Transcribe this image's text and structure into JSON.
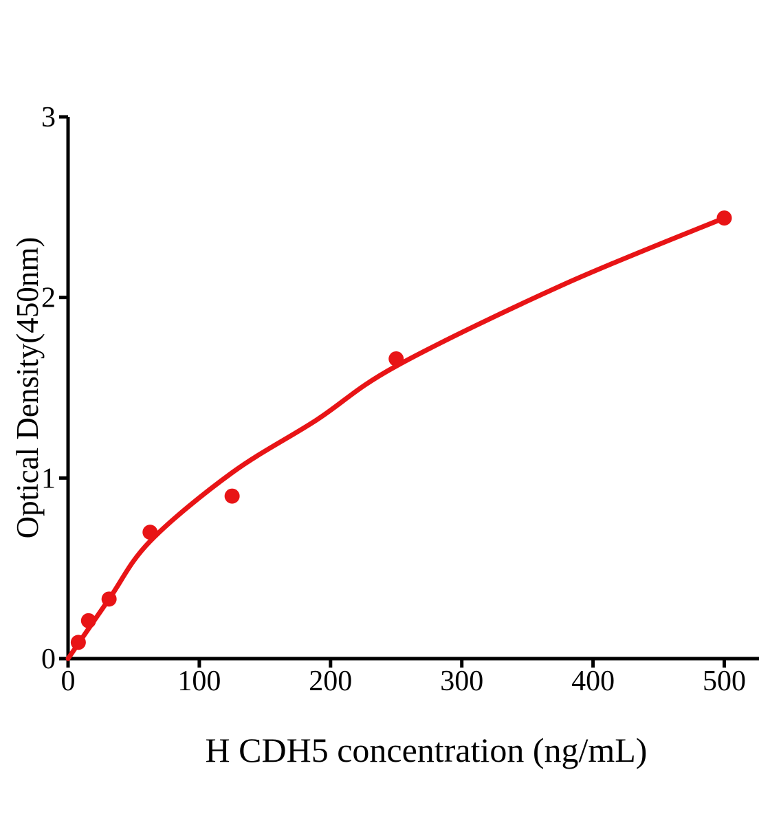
{
  "figure": {
    "background": "#ffffff"
  },
  "chart_data": {
    "type": "scatter",
    "title": "",
    "xlabel": "H CDH5 concentration (ng/mL)",
    "ylabel": "Optical Density(450nm)",
    "xlim": [
      0,
      526
    ],
    "ylim": [
      0,
      3
    ],
    "x_ticks": [
      0,
      100,
      200,
      300,
      400,
      500
    ],
    "y_ticks": [
      0,
      1,
      2,
      3
    ],
    "grid": false,
    "legend": null,
    "axis_color": "#000000",
    "series": [
      {
        "name": "fitted-curve",
        "type": "line",
        "color": "#E81416",
        "stroke_width": 7,
        "points": [
          {
            "x": 0,
            "y": 0
          },
          {
            "x": 31.25,
            "y": 0.33
          },
          {
            "x": 62.5,
            "y": 0.65
          },
          {
            "x": 125,
            "y": 1.03
          },
          {
            "x": 189,
            "y": 1.32
          },
          {
            "x": 250,
            "y": 1.62
          },
          {
            "x": 377,
            "y": 2.07
          },
          {
            "x": 500,
            "y": 2.44
          }
        ]
      },
      {
        "name": "standard-points",
        "type": "scatter",
        "color": "#E81416",
        "marker_radius": 11,
        "points": [
          {
            "x": 7.8,
            "y": 0.09
          },
          {
            "x": 15.6,
            "y": 0.21
          },
          {
            "x": 31.25,
            "y": 0.33
          },
          {
            "x": 62.5,
            "y": 0.7
          },
          {
            "x": 125,
            "y": 0.9
          },
          {
            "x": 250,
            "y": 1.66
          },
          {
            "x": 500,
            "y": 2.44
          }
        ]
      }
    ]
  }
}
